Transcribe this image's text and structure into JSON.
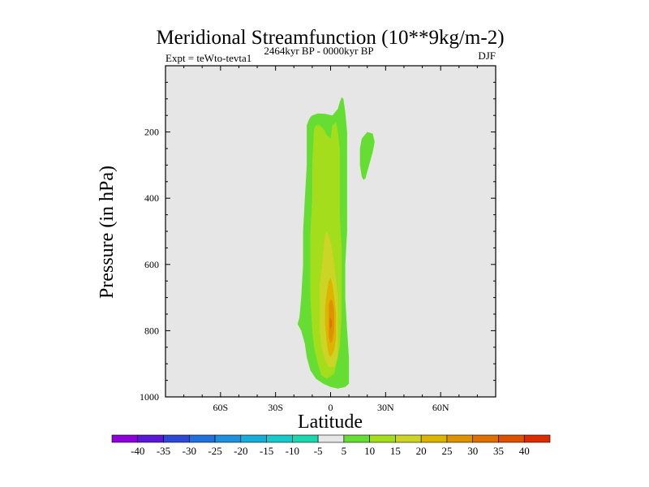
{
  "chart_data": {
    "type": "contour",
    "title": "Meridional Streamfunction (10**9kg/m-2)",
    "subtitle_left": "Expt = teWto-tevta1",
    "subtitle_center": "2464kyr BP - 0000kyr BP",
    "subtitle_right": "DJF",
    "xlabel": "Latitude",
    "ylabel": "Pressure (in hPa)",
    "xlim": [
      -90,
      90
    ],
    "ylim": [
      1000,
      0
    ],
    "x_ticks": [
      {
        "value": -60,
        "label": "60S"
      },
      {
        "value": -30,
        "label": "30S"
      },
      {
        "value": 0,
        "label": "0"
      },
      {
        "value": 30,
        "label": "30N"
      },
      {
        "value": 60,
        "label": "60N"
      }
    ],
    "y_ticks": [
      {
        "value": 200,
        "label": "200"
      },
      {
        "value": 400,
        "label": "400"
      },
      {
        "value": 600,
        "label": "600"
      },
      {
        "value": 800,
        "label": "800"
      },
      {
        "value": 1000,
        "label": "1000"
      }
    ],
    "background_level_color": "#e6e6e6",
    "contours": [
      {
        "level": "5-10",
        "color": "#66dd33",
        "lat": [
          -13,
          -12,
          -11,
          -10,
          -9,
          -7,
          -3,
          1,
          4,
          5,
          6,
          7,
          8,
          9,
          9,
          9,
          9,
          8,
          8,
          9,
          10,
          10,
          8,
          4,
          0,
          -4,
          -8,
          -11,
          -13,
          -14,
          -16,
          -18,
          -17,
          -16,
          -15,
          -15,
          -14,
          -13,
          -13
        ],
        "p": [
          180,
          165,
          155,
          150,
          148,
          144,
          145,
          150,
          130,
          110,
          95,
          100,
          140,
          200,
          300,
          400,
          500,
          600,
          700,
          800,
          880,
          960,
          970,
          975,
          970,
          960,
          945,
          920,
          880,
          840,
          800,
          780,
          760,
          700,
          600,
          500,
          400,
          300,
          220
        ]
      },
      {
        "level": "5-10",
        "color": "#66dd33",
        "lat": [
          17,
          20,
          23,
          24,
          23,
          22,
          21,
          20,
          19,
          18,
          17,
          16,
          16,
          17
        ],
        "p": [
          220,
          200,
          205,
          230,
          260,
          280,
          300,
          320,
          340,
          345,
          335,
          300,
          250,
          220
        ]
      },
      {
        "level": "10-15",
        "color": "#a3dd1c",
        "lat": [
          -9,
          -8,
          -6,
          -4,
          -2,
          0,
          1,
          3,
          4,
          5,
          5,
          5,
          6,
          6,
          6,
          5,
          2,
          -2,
          -5,
          -7,
          -9,
          -10,
          -11,
          -11,
          -11,
          -10,
          -10,
          -9
        ],
        "p": [
          190,
          180,
          180,
          190,
          210,
          220,
          180,
          170,
          200,
          250,
          350,
          450,
          550,
          650,
          750,
          850,
          930,
          945,
          935,
          900,
          850,
          800,
          700,
          600,
          500,
          400,
          300,
          190
        ]
      }
    ],
    "contours_inner": [
      {
        "level": "15-20",
        "color": "#ccd425",
        "lat": [
          -5,
          -4,
          -3,
          -2,
          0,
          1,
          2,
          3,
          4,
          4,
          4,
          4,
          2,
          -1,
          -3,
          -5,
          -6,
          -6,
          -6,
          -5
        ],
        "p": [
          620,
          560,
          510,
          500,
          530,
          560,
          600,
          650,
          700,
          780,
          840,
          880,
          910,
          910,
          890,
          850,
          800,
          720,
          660,
          620
        ]
      },
      {
        "level": "20-25",
        "color": "#ddb500",
        "lat": [
          -2,
          -1,
          0,
          1,
          2,
          3,
          3,
          2,
          0,
          -1,
          -2,
          -3,
          -3,
          -2
        ],
        "p": [
          680,
          650,
          640,
          660,
          700,
          750,
          820,
          860,
          880,
          870,
          840,
          780,
          730,
          680
        ]
      },
      {
        "level": "25-30",
        "color": "#dd9300",
        "lat": [
          -1,
          0,
          1,
          2,
          2,
          1,
          0,
          -1,
          -1
        ],
        "p": [
          720,
          705,
          710,
          740,
          800,
          830,
          840,
          820,
          720
        ]
      },
      {
        "level": "30-35",
        "color": "#dd7000",
        "lat": [
          -0.5,
          0,
          0.6,
          0.7,
          0,
          -0.4,
          -0.5
        ],
        "p": [
          765,
          760,
          770,
          785,
          795,
          790,
          765
        ]
      }
    ],
    "colorbar": {
      "colors": [
        "#8f00d9",
        "#5a17d6",
        "#2d49d4",
        "#2270d9",
        "#1e90dc",
        "#16aed6",
        "#17c8cc",
        "#1cd7ae",
        "#e6e6e6",
        "#66dd33",
        "#a3dd1c",
        "#ccd425",
        "#ddb500",
        "#dd9300",
        "#dd7000",
        "#dd5200",
        "#dd2b00"
      ],
      "labels": [
        "-40",
        "-35",
        "-30",
        "-25",
        "-20",
        "-15",
        "-10",
        "-5",
        "5",
        "10",
        "15",
        "20",
        "25",
        "30",
        "35",
        "40"
      ]
    }
  }
}
